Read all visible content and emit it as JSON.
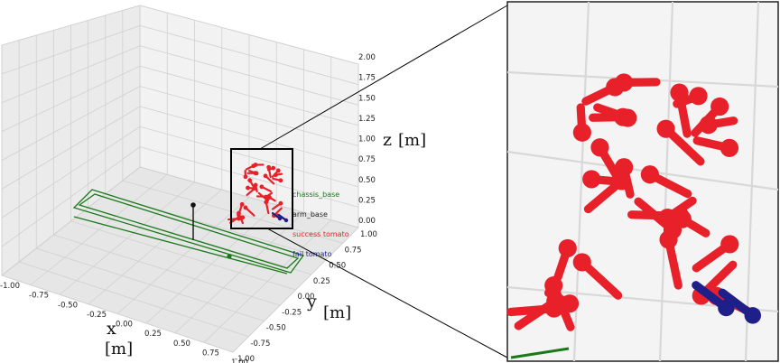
{
  "chart_data": {
    "type": "scatter",
    "projection": "3d",
    "axes": {
      "x": {
        "title": "x",
        "unit": "[m]",
        "range": [
          -1.0,
          1.0
        ],
        "ticks": [
          "-1.00",
          "-0.75",
          "-0.50",
          "-0.25",
          "0.00",
          "0.25",
          "0.50",
          "0.75",
          "1.00"
        ]
      },
      "y": {
        "title": "y",
        "unit": "[m]",
        "range": [
          -1.0,
          1.0
        ],
        "ticks": [
          "-1.00",
          "-0.75",
          "-0.50",
          "-0.25",
          "0.00",
          "0.25",
          "0.50",
          "0.75",
          "1.00"
        ]
      },
      "z": {
        "title": "z",
        "unit": "[m]",
        "range": [
          0.0,
          2.0
        ],
        "ticks": [
          "0.00",
          "0.25",
          "0.50",
          "0.75",
          "1.00",
          "1.25",
          "1.50",
          "1.75",
          "2.00"
        ]
      }
    },
    "grid": true,
    "legend": [
      {
        "label": "chassis_base",
        "color": "#1a7a1a"
      },
      {
        "label": "arm_base",
        "color": "#222222"
      },
      {
        "label": "success tomato",
        "color": "#e8202a"
      },
      {
        "label": "fail tomato",
        "color": "#1f1f8a"
      }
    ],
    "inset": {
      "shows": "zoomed view of tomato cluster"
    }
  }
}
